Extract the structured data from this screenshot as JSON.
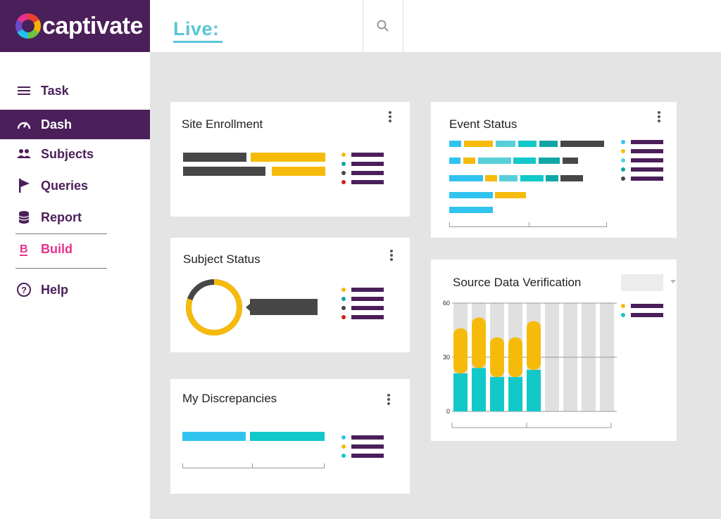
{
  "brand": {
    "name": "captivate"
  },
  "header": {
    "title": "Live:"
  },
  "nav": [
    {
      "label": "Task",
      "icon": "menu-icon"
    },
    {
      "label": "Dash",
      "icon": "gauge-icon",
      "active": true
    },
    {
      "label": "Subjects",
      "icon": "people-icon"
    },
    {
      "label": "Queries",
      "icon": "flag-icon"
    },
    {
      "label": "Report",
      "icon": "database-icon"
    },
    {
      "label": "Build",
      "icon": "build-b-icon"
    },
    {
      "label": "Help",
      "icon": "help-icon"
    }
  ],
  "cards": {
    "site_enrollment": {
      "title": "Site Enrollment"
    },
    "subject_status": {
      "title": "Subject Status",
      "donut_fraction": 0.8
    },
    "my_discrepancies": {
      "title": "My Discrepancies"
    },
    "event_status": {
      "title": "Event Status"
    },
    "source_data_verification": {
      "title": "Source Data Verification",
      "chart_data": {
        "type": "bar",
        "stacked": true,
        "y_ticks": [
          "60",
          "30",
          "0"
        ],
        "ylim": [
          0,
          60
        ],
        "series": [
          {
            "color": "#13c8c8",
            "values": [
              21,
              24,
              19,
              19,
              23,
              0,
              0,
              0,
              0
            ]
          },
          {
            "color": "#f6bb0a",
            "values": [
              25,
              28,
              22,
              22,
              27,
              0,
              0,
              0,
              0
            ]
          }
        ]
      }
    }
  },
  "colors": {
    "purple": "#4b1f5a",
    "yellow": "#f6bb0a",
    "teal": "#13c8c8",
    "cyan": "#30c3f0",
    "dark": "#474747",
    "red": "#d41f1f",
    "pink": "#e8318c"
  }
}
